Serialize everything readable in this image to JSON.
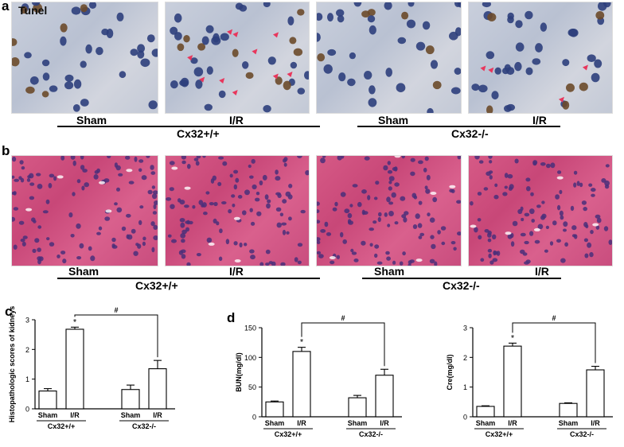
{
  "panel_a": {
    "letter": "a",
    "stain_label": "Tunel",
    "group_wt": {
      "sham": "Sham",
      "ir": "I/R",
      "genotype": "Cx32+/+"
    },
    "group_ko": {
      "sham": "Sham",
      "ir": "I/R",
      "genotype": "Cx32-/-"
    }
  },
  "panel_b": {
    "letter": "b",
    "group_wt": {
      "sham": "Sham",
      "ir": "I/R",
      "genotype": "Cx32+/+"
    },
    "group_ko": {
      "sham": "Sham",
      "ir": "I/R",
      "genotype": "Cx32-/-"
    }
  },
  "panel_c": {
    "letter": "c"
  },
  "panel_d": {
    "letter": "d"
  },
  "chart_data": [
    {
      "type": "bar",
      "ylabel": "Histopathologic scores of kidneys",
      "ylim": [
        0,
        3
      ],
      "yticks": [
        "0",
        "1",
        "2",
        "3"
      ],
      "categories": [
        "Sham",
        "I/R",
        "Sham",
        "I/R"
      ],
      "groups": [
        "Cx32+/+",
        "Cx32-/-"
      ],
      "values": [
        0.6,
        2.68,
        0.65,
        1.35
      ],
      "errors": [
        0.08,
        0.07,
        0.15,
        0.28
      ],
      "star_label": "*",
      "hash_label": "#"
    },
    {
      "type": "bar",
      "ylabel": "BUN(mg/dl)",
      "ylim": [
        0,
        150
      ],
      "yticks": [
        "0",
        "50",
        "100",
        "150"
      ],
      "categories": [
        "Sham",
        "I/R",
        "Sham",
        "I/R"
      ],
      "groups": [
        "Cx32+/+",
        "Cx32-/-"
      ],
      "values": [
        25,
        110,
        32,
        70
      ],
      "errors": [
        1.5,
        7,
        4,
        10
      ],
      "star_label": "*",
      "hash_label": "#"
    },
    {
      "type": "bar",
      "ylabel": "Cre(mg/dl)",
      "ylim": [
        0,
        3
      ],
      "yticks": [
        "0",
        "1",
        "2",
        "3"
      ],
      "categories": [
        "Sham",
        "I/R",
        "Sham",
        "I/R"
      ],
      "groups": [
        "Cx32+/+",
        "Cx32-/-"
      ],
      "values": [
        0.35,
        2.38,
        0.45,
        1.58
      ],
      "errors": [
        0.02,
        0.1,
        0.02,
        0.12
      ],
      "star_label": "*",
      "hash_label": "#"
    }
  ]
}
